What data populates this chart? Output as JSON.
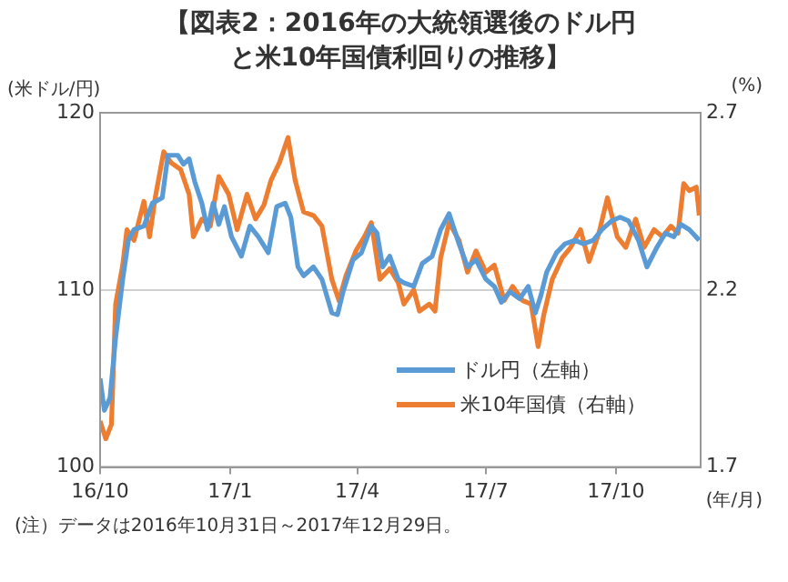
{
  "chart_data": {
    "type": "line",
    "title": "【図表2：2016年の大統領選後のドル円と米10年国債利回りの推移】",
    "ylabel": "(米ドル/円)",
    "y2label": "(%)",
    "xlabel": "(年/月)",
    "annotations": [
      "(注）データは2016年10月31日～2017年12月29日。"
    ],
    "xlim": [
      "2016-10-01",
      "2017-11-30"
    ],
    "xticks": [
      {
        "value": "2016-10-01",
        "label": "16/10"
      },
      {
        "value": "2017-01-01",
        "label": "17/1"
      },
      {
        "value": "2017-04-01",
        "label": "17/4"
      },
      {
        "value": "2017-07-01",
        "label": "17/7"
      },
      {
        "value": "2017-10-01",
        "label": "17/10"
      }
    ],
    "ylim": [
      100,
      120
    ],
    "yticks": [
      100,
      110,
      120
    ],
    "y2lim": [
      1.7,
      2.7
    ],
    "y2ticks": [
      1.7,
      2.2,
      2.7
    ],
    "grid": "y",
    "legend": "bottom right",
    "marker": "none",
    "line_style": "solid",
    "series": [
      {
        "name": "ドル円（左軸）",
        "color": "#5b9bd5",
        "axis": "y",
        "x": [
          "2016-10-01",
          "2016-10-04",
          "2016-10-08",
          "2016-10-12",
          "2016-10-17",
          "2016-10-21",
          "2016-10-25",
          "2016-11-01",
          "2016-11-07",
          "2016-11-14",
          "2016-11-18",
          "2016-11-25",
          "2016-11-29",
          "2016-12-03",
          "2016-12-07",
          "2016-12-12",
          "2016-12-16",
          "2016-12-20",
          "2016-12-24",
          "2016-12-28",
          "2017-01-02",
          "2017-01-09",
          "2017-01-15",
          "2017-01-21",
          "2017-01-28",
          "2017-02-03",
          "2017-02-09",
          "2017-02-13",
          "2017-02-18",
          "2017-02-22",
          "2017-03-01",
          "2017-03-07",
          "2017-03-14",
          "2017-03-18",
          "2017-03-22",
          "2017-03-29",
          "2017-04-04",
          "2017-04-11",
          "2017-04-15",
          "2017-04-19",
          "2017-04-24",
          "2017-04-30",
          "2017-05-04",
          "2017-05-11",
          "2017-05-17",
          "2017-05-24",
          "2017-05-30",
          "2017-06-05",
          "2017-06-12",
          "2017-06-18",
          "2017-06-24",
          "2017-07-01",
          "2017-07-07",
          "2017-07-12",
          "2017-07-18",
          "2017-07-25",
          "2017-07-31",
          "2017-08-05",
          "2017-08-09",
          "2017-08-13",
          "2017-08-20",
          "2017-08-26",
          "2017-09-02",
          "2017-09-08",
          "2017-09-15",
          "2017-09-21",
          "2017-09-28",
          "2017-10-04",
          "2017-10-10",
          "2017-10-17",
          "2017-10-23",
          "2017-10-30",
          "2017-11-05",
          "2017-11-11",
          "2017-11-16",
          "2017-11-22",
          "2017-11-29"
        ],
        "values": [
          105.0,
          103.2,
          103.9,
          107.3,
          110.6,
          112.8,
          113.4,
          113.6,
          114.9,
          115.2,
          117.6,
          117.6,
          117.1,
          117.4,
          116.1,
          114.9,
          113.4,
          114.9,
          113.7,
          114.7,
          113.0,
          111.9,
          113.6,
          113.0,
          112.1,
          114.7,
          114.9,
          114.1,
          111.3,
          110.8,
          111.3,
          110.6,
          108.7,
          108.6,
          109.9,
          111.7,
          112.1,
          113.6,
          113.2,
          111.3,
          111.9,
          110.6,
          110.4,
          110.2,
          111.5,
          111.9,
          113.4,
          114.3,
          112.6,
          111.3,
          111.7,
          110.6,
          110.2,
          109.3,
          109.9,
          109.5,
          110.2,
          108.7,
          109.7,
          111.0,
          112.1,
          112.6,
          112.8,
          112.6,
          112.8,
          113.4,
          113.9,
          114.1,
          113.9,
          112.8,
          111.3,
          112.4,
          113.2,
          113.0,
          113.7,
          113.4,
          112.8
        ]
      },
      {
        "name": "米10年国債（右軸）",
        "color": "#ed7d31",
        "axis": "y2",
        "x": [
          "2016-10-01",
          "2016-10-05",
          "2016-10-09",
          "2016-10-12",
          "2016-10-17",
          "2016-10-20",
          "2016-10-25",
          "2016-11-01",
          "2016-11-05",
          "2016-11-09",
          "2016-11-15",
          "2016-11-20",
          "2016-11-27",
          "2016-12-03",
          "2016-12-06",
          "2016-12-12",
          "2016-12-18",
          "2016-12-24",
          "2016-12-31",
          "2017-01-06",
          "2017-01-13",
          "2017-01-19",
          "2017-01-25",
          "2017-01-30",
          "2017-02-05",
          "2017-02-11",
          "2017-02-16",
          "2017-02-22",
          "2017-03-01",
          "2017-03-07",
          "2017-03-14",
          "2017-03-19",
          "2017-03-24",
          "2017-03-31",
          "2017-04-06",
          "2017-04-11",
          "2017-04-17",
          "2017-04-24",
          "2017-04-30",
          "2017-05-04",
          "2017-05-11",
          "2017-05-15",
          "2017-05-22",
          "2017-05-26",
          "2017-05-30",
          "2017-06-05",
          "2017-06-12",
          "2017-06-18",
          "2017-06-24",
          "2017-07-01",
          "2017-07-07",
          "2017-07-14",
          "2017-07-20",
          "2017-07-27",
          "2017-08-02",
          "2017-08-07",
          "2017-08-11",
          "2017-08-17",
          "2017-08-24",
          "2017-08-30",
          "2017-09-06",
          "2017-09-12",
          "2017-09-19",
          "2017-09-25",
          "2017-10-02",
          "2017-10-08",
          "2017-10-15",
          "2017-10-21",
          "2017-10-28",
          "2017-11-03",
          "2017-11-09",
          "2017-11-14",
          "2017-11-18",
          "2017-11-22",
          "2017-11-27",
          "2017-11-29"
        ],
        "values": [
          1.83,
          1.78,
          1.82,
          2.16,
          2.27,
          2.37,
          2.34,
          2.45,
          2.35,
          2.46,
          2.59,
          2.56,
          2.54,
          2.47,
          2.35,
          2.4,
          2.38,
          2.52,
          2.47,
          2.37,
          2.47,
          2.4,
          2.44,
          2.51,
          2.56,
          2.63,
          2.51,
          2.42,
          2.41,
          2.38,
          2.23,
          2.17,
          2.24,
          2.31,
          2.35,
          2.39,
          2.23,
          2.26,
          2.22,
          2.16,
          2.2,
          2.14,
          2.16,
          2.14,
          2.29,
          2.39,
          2.34,
          2.25,
          2.31,
          2.25,
          2.27,
          2.17,
          2.21,
          2.17,
          2.16,
          2.04,
          2.13,
          2.23,
          2.29,
          2.32,
          2.37,
          2.28,
          2.36,
          2.46,
          2.35,
          2.32,
          2.4,
          2.32,
          2.37,
          2.35,
          2.38,
          2.36,
          2.5,
          2.48,
          2.49,
          2.41
        ]
      }
    ]
  }
}
